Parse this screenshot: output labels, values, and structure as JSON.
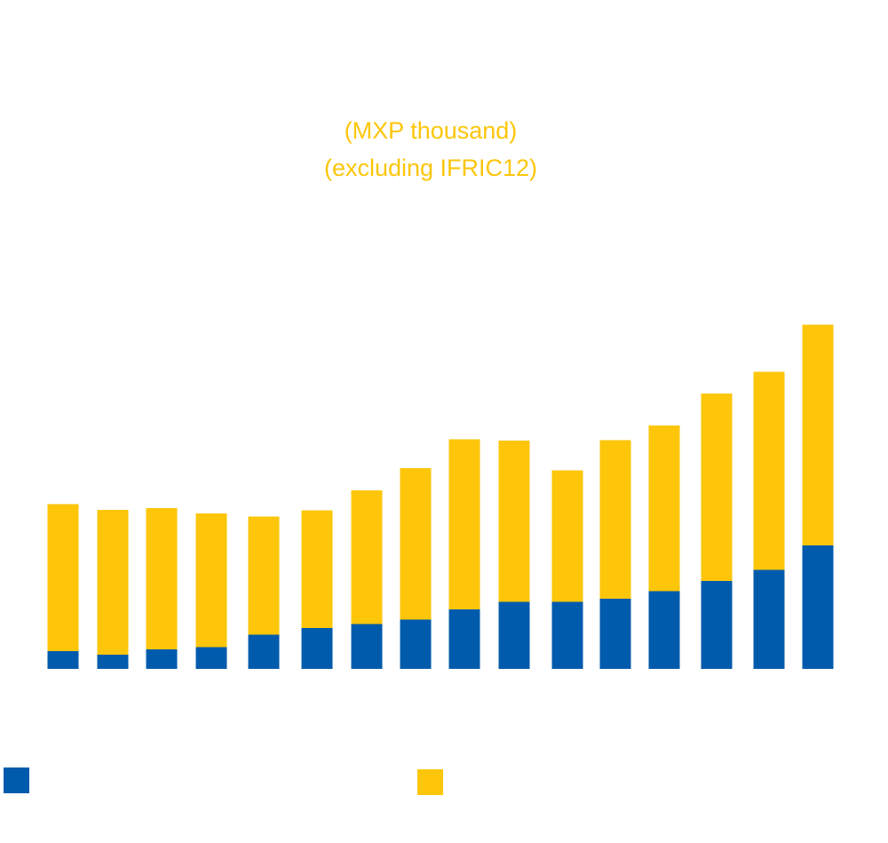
{
  "chart_data": {
    "type": "bar",
    "stacked": true,
    "subtitle_lines": [
      "(MXP thousand)",
      "(excluding IFRIC12)"
    ],
    "categories": [
      "",
      "",
      "",
      "",
      "",
      "",
      "",
      "",
      "",
      "",
      "",
      "",
      "",
      "",
      "",
      ""
    ],
    "ylim": [
      0,
      1000
    ],
    "series": [
      {
        "color": "#005BAC",
        "values": [
          40,
          32,
          44,
          49,
          77,
          92,
          101,
          111,
          134,
          151,
          151,
          158,
          175,
          198,
          223,
          278
        ]
      },
      {
        "color": "#FDC60A",
        "values": [
          331,
          326,
          318,
          301,
          266,
          265,
          301,
          341,
          383,
          363,
          296,
          357,
          373,
          422,
          446,
          497
        ]
      }
    ],
    "legend": {
      "position": "bottom",
      "entries": [
        "",
        ""
      ]
    },
    "grid": false
  },
  "colors": {
    "subtitle": "#FDC60A",
    "background": "#ffffff"
  }
}
